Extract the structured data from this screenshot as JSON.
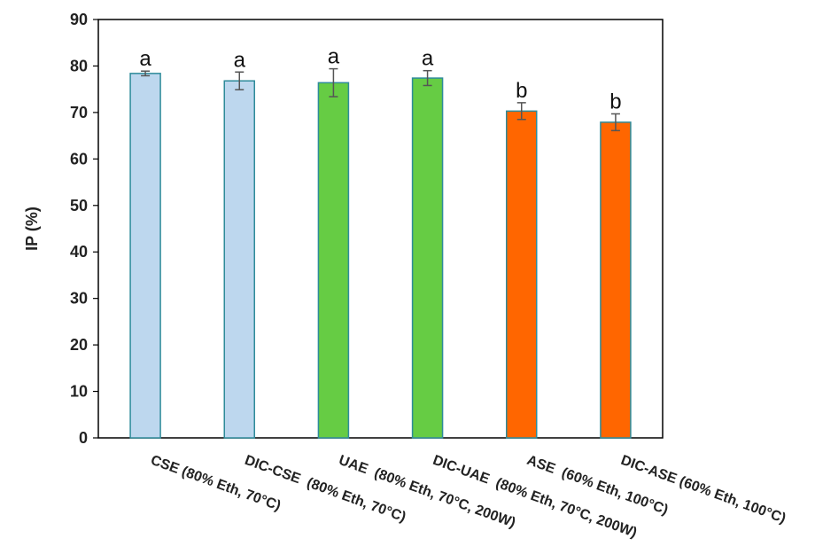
{
  "chart_data": {
    "type": "bar",
    "ylabel": "IP (%)",
    "xlabel": "",
    "ylim": [
      0,
      90
    ],
    "yticks": [
      0,
      10,
      20,
      30,
      40,
      50,
      60,
      70,
      80,
      90
    ],
    "grid": false,
    "legend": "none",
    "categories": [
      "CSE (80% Eth, 70°C)",
      "DIC-CSE  (80% Eth, 70°C)",
      "UAE  (80% Eth, 70°C, 200W)",
      "DIC-UAE  (80% Eth, 70°C, 200W)",
      "ASE  (60% Eth, 100°C)",
      "DIC-ASE (60% Eth, 100°C)"
    ],
    "values": [
      78.4,
      76.8,
      76.4,
      77.4,
      70.3,
      67.9
    ],
    "errors": [
      0.5,
      1.9,
      3.0,
      1.6,
      1.8,
      1.8
    ],
    "significance": [
      "a",
      "a",
      "a",
      "a",
      "b",
      "b"
    ],
    "bar_colors": [
      "#bdd7ee",
      "#bdd7ee",
      "#66cc44",
      "#66cc44",
      "#ff6600",
      "#ff6600"
    ],
    "bar_edge_color": "#2e8b9a"
  }
}
